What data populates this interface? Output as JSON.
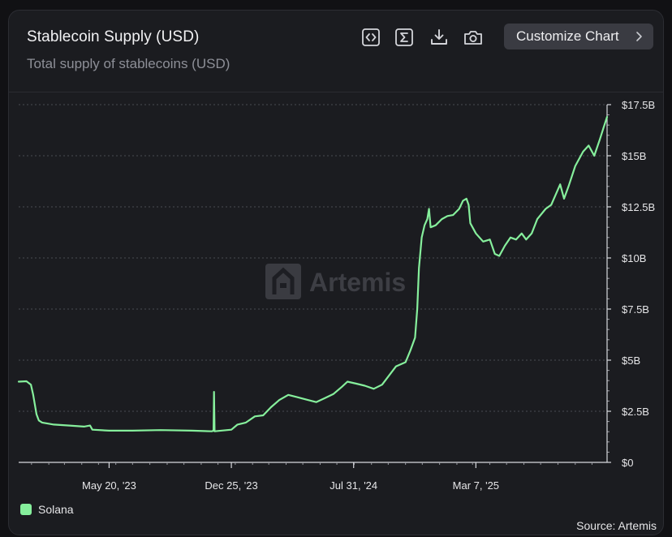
{
  "header": {
    "title": "Stablecoin Supply (USD)",
    "subtitle": "Total supply of stablecoins (USD)",
    "customize_label": "Customize Chart",
    "tools": [
      "code-icon",
      "sigma-icon",
      "download-icon",
      "camera-icon"
    ]
  },
  "watermark": "Artemis",
  "source": "Source: Artemis",
  "colors": {
    "background": "#1b1c20",
    "series": "#86ef9c",
    "grid": "#4a4b52",
    "text": "#e6e6e8",
    "muted": "#8d8f97"
  },
  "chart_data": {
    "type": "line",
    "title": "Stablecoin Supply (USD)",
    "subtitle": "Total supply of stablecoins (USD)",
    "xlabel": "",
    "ylabel": "",
    "x_range": [
      "2022-12-09",
      "2025-10-28"
    ],
    "ylim": [
      0,
      17.5
    ],
    "y_unit": "B USD",
    "y_ticks": [
      0,
      2.5,
      5,
      7.5,
      10,
      12.5,
      15,
      17.5
    ],
    "y_tick_labels": [
      "$0",
      "$2.5B",
      "$5B",
      "$7.5B",
      "$10B",
      "$12.5B",
      "$15B",
      "$17.5B"
    ],
    "x_ticks": [
      "2023-05-20",
      "2023-12-25",
      "2024-07-31",
      "2025-03-07"
    ],
    "x_tick_labels": [
      "May 20, '23",
      "Dec 25, '23",
      "Jul 31, '24",
      "Mar 7, '25"
    ],
    "grid": true,
    "legend_position": "bottom-left",
    "series": [
      {
        "name": "Solana",
        "color": "#86ef9c",
        "points": [
          [
            "2022-12-09",
            3.95
          ],
          [
            "2022-12-23",
            3.97
          ],
          [
            "2022-12-31",
            3.8
          ],
          [
            "2023-01-04",
            3.3
          ],
          [
            "2023-01-10",
            2.35
          ],
          [
            "2023-01-14",
            2.05
          ],
          [
            "2023-01-20",
            1.95
          ],
          [
            "2023-02-10",
            1.85
          ],
          [
            "2023-03-10",
            1.8
          ],
          [
            "2023-04-05",
            1.75
          ],
          [
            "2023-04-16",
            1.8
          ],
          [
            "2023-04-20",
            1.6
          ],
          [
            "2023-05-20",
            1.55
          ],
          [
            "2023-07-01",
            1.55
          ],
          [
            "2023-08-20",
            1.58
          ],
          [
            "2023-10-15",
            1.55
          ],
          [
            "2023-11-20",
            1.52
          ],
          [
            "2023-11-23",
            1.55
          ],
          [
            "2023-11-24",
            3.45
          ],
          [
            "2023-11-25",
            1.52
          ],
          [
            "2023-12-25",
            1.6
          ],
          [
            "2024-01-05",
            1.85
          ],
          [
            "2024-01-20",
            1.95
          ],
          [
            "2024-02-05",
            2.25
          ],
          [
            "2024-02-20",
            2.3
          ],
          [
            "2024-03-05",
            2.7
          ],
          [
            "2024-03-20",
            3.05
          ],
          [
            "2024-04-05",
            3.3
          ],
          [
            "2024-04-20",
            3.2
          ],
          [
            "2024-05-10",
            3.05
          ],
          [
            "2024-05-25",
            2.95
          ],
          [
            "2024-06-10",
            3.15
          ],
          [
            "2024-06-25",
            3.35
          ],
          [
            "2024-07-10",
            3.7
          ],
          [
            "2024-07-20",
            3.95
          ],
          [
            "2024-08-05",
            3.85
          ],
          [
            "2024-08-20",
            3.75
          ],
          [
            "2024-09-05",
            3.6
          ],
          [
            "2024-09-20",
            3.8
          ],
          [
            "2024-10-01",
            4.2
          ],
          [
            "2024-10-15",
            4.7
          ],
          [
            "2024-11-01",
            4.9
          ],
          [
            "2024-11-10",
            5.5
          ],
          [
            "2024-11-18",
            6.1
          ],
          [
            "2024-11-22",
            7.5
          ],
          [
            "2024-11-25",
            9.5
          ],
          [
            "2024-11-30",
            11.0
          ],
          [
            "2024-12-05",
            11.6
          ],
          [
            "2024-12-10",
            11.9
          ],
          [
            "2024-12-13",
            12.4
          ],
          [
            "2024-12-16",
            11.5
          ],
          [
            "2024-12-25",
            11.6
          ],
          [
            "2025-01-05",
            11.9
          ],
          [
            "2025-01-15",
            12.05
          ],
          [
            "2025-01-25",
            12.1
          ],
          [
            "2025-02-05",
            12.4
          ],
          [
            "2025-02-12",
            12.8
          ],
          [
            "2025-02-18",
            12.9
          ],
          [
            "2025-02-22",
            12.6
          ],
          [
            "2025-02-25",
            11.7
          ],
          [
            "2025-03-07",
            11.2
          ],
          [
            "2025-03-20",
            10.8
          ],
          [
            "2025-04-01",
            10.9
          ],
          [
            "2025-04-10",
            10.2
          ],
          [
            "2025-04-18",
            10.1
          ],
          [
            "2025-04-28",
            10.6
          ],
          [
            "2025-05-08",
            11.0
          ],
          [
            "2025-05-18",
            10.9
          ],
          [
            "2025-05-28",
            11.2
          ],
          [
            "2025-06-05",
            10.9
          ],
          [
            "2025-06-15",
            11.2
          ],
          [
            "2025-06-25",
            11.9
          ],
          [
            "2025-07-10",
            12.4
          ],
          [
            "2025-07-20",
            12.6
          ],
          [
            "2025-07-28",
            13.1
          ],
          [
            "2025-08-05",
            13.6
          ],
          [
            "2025-08-12",
            12.9
          ],
          [
            "2025-08-20",
            13.5
          ],
          [
            "2025-09-01",
            14.5
          ],
          [
            "2025-09-15",
            15.2
          ],
          [
            "2025-09-25",
            15.5
          ],
          [
            "2025-10-05",
            15.0
          ],
          [
            "2025-10-15",
            15.8
          ],
          [
            "2025-10-22",
            16.4
          ],
          [
            "2025-10-28",
            16.9
          ]
        ]
      }
    ]
  }
}
